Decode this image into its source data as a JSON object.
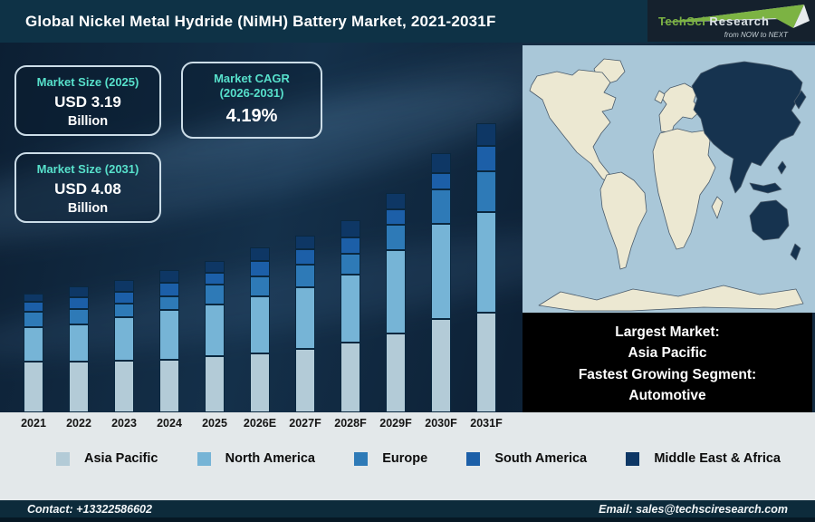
{
  "header": {
    "title": "Global Nickel Metal Hydride (NiMH) Battery Market, 2021-2031F",
    "logo": {
      "name1": "TechSci",
      "name2": "Research",
      "tagline": "from NOW to NEXT"
    }
  },
  "info_boxes": [
    {
      "title": "Market Size (2025)",
      "value": "USD 3.19",
      "unit": "Billion"
    },
    {
      "title": "Market CAGR",
      "title_line2": "(2026-2031)",
      "value": "4.19%"
    },
    {
      "title": "Market Size (2031)",
      "value": "USD 4.08",
      "unit": "Billion"
    }
  ],
  "map": {
    "highlighted_region": "Asia Pacific",
    "ocean_color": "#a9c7d8",
    "land_color": "#ece8d2",
    "highlight_color": "#16334f"
  },
  "callout": {
    "lines": [
      "Largest Market:",
      "Asia Pacific",
      "Fastest Growing Segment:",
      "Automotive"
    ]
  },
  "chart_data": {
    "type": "bar",
    "stacked": true,
    "title": "Global Nickel Metal Hydride (NiMH) Battery Market, 2021-2031F",
    "categories": [
      "2021",
      "2022",
      "2023",
      "2024",
      "2025",
      "2026E",
      "2027F",
      "2028F",
      "2029F",
      "2030F",
      "2031F"
    ],
    "series": [
      {
        "name": "Asia Pacific",
        "color": "#b3cbd7",
        "values": [
          56,
          56,
          57,
          58,
          62,
          65,
          70,
          77,
          87,
          103,
          110
        ]
      },
      {
        "name": "North America",
        "color": "#76b4d6",
        "values": [
          38,
          41,
          48,
          55,
          57,
          63,
          68,
          75,
          92,
          105,
          111
        ]
      },
      {
        "name": "Europe",
        "color": "#2e7ab7",
        "values": [
          17,
          17,
          15,
          15,
          22,
          22,
          25,
          23,
          28,
          38,
          45
        ]
      },
      {
        "name": "South America",
        "color": "#1c5fa8",
        "values": [
          11,
          13,
          13,
          15,
          13,
          17,
          17,
          18,
          17,
          18,
          28
        ]
      },
      {
        "name": "Middle East & Africa",
        "color": "#0e3765",
        "values": [
          9,
          12,
          13,
          14,
          13,
          15,
          15,
          19,
          18,
          22,
          25
        ]
      }
    ],
    "value_axis": "none shown (illustrative stacked bar heights, rendered px)",
    "grid": false,
    "legend_position": "bottom",
    "annotations": {
      "market_size_2025_usd_billion": 3.19,
      "market_size_2031_usd_billion": 4.08,
      "cagr_2026_2031_percent": 4.19
    }
  },
  "footer": {
    "contact": "Contact: +13322586602",
    "email": "Email: sales@techsciresearch.com"
  },
  "colors": {
    "accent_teal": "#57e0cb",
    "header_bg": "#0e3246",
    "footer_bg": "#0d2b3b",
    "strip_bg": "#e3e8ea",
    "logo_green": "#7cb343"
  }
}
